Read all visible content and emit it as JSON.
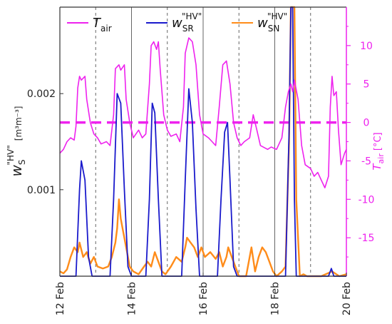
{
  "chart_data": {
    "type": "line",
    "x_ticks": [
      "12 Feb",
      "14 Feb",
      "16 Feb",
      "18 Feb",
      "20 Feb"
    ],
    "x_range_days": [
      12,
      20
    ],
    "y_left": {
      "label_main": "w",
      "label_sup": "\"HV\"",
      "label_sub": "S",
      "label_unit": "[m³m⁻³]",
      "range": [
        0.0001,
        0.0029
      ],
      "ticks": [
        {
          "value": 0.001,
          "label": "0.001"
        },
        {
          "value": 0.002,
          "label": "0.002"
        }
      ]
    },
    "y_right": {
      "label_main": "T",
      "label_sub": "air",
      "label_unit": "[°C]",
      "range": [
        -20,
        15
      ],
      "ticks": [
        {
          "value": 10,
          "label": "10"
        },
        {
          "value": 5,
          "label": "5"
        },
        {
          "value": 0,
          "label": "0"
        },
        {
          "value": -5,
          "label": "-5"
        },
        {
          "value": -10,
          "label": "-10"
        },
        {
          "value": -15,
          "label": "-15"
        }
      ],
      "reference_line": 0
    },
    "solid_vertical_lines_days": [
      14,
      16,
      18
    ],
    "dashed_vertical_lines_days": [
      13,
      15,
      17,
      19
    ],
    "legend": [
      {
        "key": "tair",
        "main": "T",
        "sub": "air",
        "sup": ""
      },
      {
        "key": "wsr",
        "main": "w",
        "sub": "SR",
        "sup": "\"HV\""
      },
      {
        "key": "wsn",
        "main": "w",
        "sub": "SN",
        "sup": "\"HV\""
      }
    ],
    "series": [
      {
        "key": "tair",
        "name": "T air",
        "axis": "right",
        "color": "#ee22ee",
        "points": [
          [
            12.0,
            -4.0
          ],
          [
            12.1,
            -3.5
          ],
          [
            12.2,
            -2.5
          ],
          [
            12.3,
            -2.0
          ],
          [
            12.4,
            -2.3
          ],
          [
            12.45,
            -0.5
          ],
          [
            12.5,
            4.5
          ],
          [
            12.55,
            6.0
          ],
          [
            12.6,
            5.5
          ],
          [
            12.7,
            6.0
          ],
          [
            12.75,
            3.0
          ],
          [
            12.85,
            0.0
          ],
          [
            12.95,
            -1.5
          ],
          [
            13.05,
            -2.0
          ],
          [
            13.15,
            -2.8
          ],
          [
            13.3,
            -2.5
          ],
          [
            13.4,
            -3.0
          ],
          [
            13.5,
            1.0
          ],
          [
            13.55,
            7.0
          ],
          [
            13.65,
            7.5
          ],
          [
            13.7,
            6.8
          ],
          [
            13.8,
            7.5
          ],
          [
            13.85,
            3.0
          ],
          [
            13.95,
            0.0
          ],
          [
            14.05,
            -2.0
          ],
          [
            14.2,
            -1.0
          ],
          [
            14.3,
            -2.0
          ],
          [
            14.4,
            -1.5
          ],
          [
            14.5,
            5.0
          ],
          [
            14.55,
            10.0
          ],
          [
            14.62,
            10.5
          ],
          [
            14.7,
            9.5
          ],
          [
            14.75,
            10.5
          ],
          [
            14.8,
            7.0
          ],
          [
            14.9,
            1.0
          ],
          [
            15.0,
            -1.0
          ],
          [
            15.1,
            -1.8
          ],
          [
            15.25,
            -1.5
          ],
          [
            15.35,
            -2.5
          ],
          [
            15.45,
            2.0
          ],
          [
            15.5,
            9.0
          ],
          [
            15.6,
            11.0
          ],
          [
            15.7,
            10.5
          ],
          [
            15.8,
            7.5
          ],
          [
            15.9,
            1.0
          ],
          [
            16.0,
            -1.5
          ],
          [
            16.15,
            -2.0
          ],
          [
            16.25,
            -2.5
          ],
          [
            16.35,
            -3.0
          ],
          [
            16.45,
            2.0
          ],
          [
            16.55,
            7.5
          ],
          [
            16.65,
            8.0
          ],
          [
            16.75,
            5.0
          ],
          [
            16.85,
            0.0
          ],
          [
            16.95,
            -2.0
          ],
          [
            17.05,
            -3.0
          ],
          [
            17.15,
            -2.5
          ],
          [
            17.3,
            -2.0
          ],
          [
            17.4,
            1.0
          ],
          [
            17.5,
            -1.0
          ],
          [
            17.6,
            -3.0
          ],
          [
            17.8,
            -3.5
          ],
          [
            17.9,
            -3.2
          ],
          [
            18.05,
            -3.5
          ],
          [
            18.2,
            -2.0
          ],
          [
            18.3,
            2.0
          ],
          [
            18.38,
            4.0
          ],
          [
            18.45,
            5.0
          ],
          [
            18.5,
            4.0
          ],
          [
            18.55,
            5.5
          ],
          [
            18.65,
            3.0
          ],
          [
            18.75,
            -3.0
          ],
          [
            18.85,
            -5.5
          ],
          [
            19.0,
            -6.0
          ],
          [
            19.1,
            -7.0
          ],
          [
            19.2,
            -6.5
          ],
          [
            19.3,
            -7.5
          ],
          [
            19.4,
            -8.5
          ],
          [
            19.5,
            -7.0
          ],
          [
            19.55,
            2.0
          ],
          [
            19.6,
            6.0
          ],
          [
            19.65,
            3.5
          ],
          [
            19.72,
            4.0
          ],
          [
            19.78,
            -1.0
          ],
          [
            19.85,
            -5.5
          ],
          [
            19.95,
            -4.0
          ],
          [
            20.0,
            -3.5
          ]
        ]
      },
      {
        "key": "wsr",
        "name": "w SR \"HV\"",
        "axis": "left",
        "color": "#1a1acc",
        "points": [
          [
            12.0,
            0.0001
          ],
          [
            12.45,
            0.0001
          ],
          [
            12.55,
            0.001
          ],
          [
            12.6,
            0.0013
          ],
          [
            12.7,
            0.0011
          ],
          [
            12.8,
            0.0003
          ],
          [
            12.9,
            0.0001
          ],
          [
            13.4,
            0.0001
          ],
          [
            13.5,
            0.0009
          ],
          [
            13.6,
            0.002
          ],
          [
            13.7,
            0.0019
          ],
          [
            13.8,
            0.001
          ],
          [
            13.9,
            0.0002
          ],
          [
            14.0,
            0.0001
          ],
          [
            14.4,
            0.0001
          ],
          [
            14.5,
            0.0009
          ],
          [
            14.58,
            0.0019
          ],
          [
            14.65,
            0.0018
          ],
          [
            14.75,
            0.0009
          ],
          [
            14.85,
            0.0001
          ],
          [
            15.4,
            0.0001
          ],
          [
            15.5,
            0.0011
          ],
          [
            15.6,
            0.00205
          ],
          [
            15.7,
            0.0017
          ],
          [
            15.8,
            0.0008
          ],
          [
            15.9,
            0.0001
          ],
          [
            16.4,
            0.0001
          ],
          [
            16.5,
            0.0009
          ],
          [
            16.6,
            0.0016
          ],
          [
            16.68,
            0.0017
          ],
          [
            16.75,
            0.0011
          ],
          [
            16.85,
            0.0002
          ],
          [
            16.95,
            0.0001
          ],
          [
            17.8,
            0.0001
          ],
          [
            18.3,
            0.0001
          ],
          [
            18.4,
            0.0016
          ],
          [
            18.45,
            0.0029
          ],
          [
            18.5,
            0.0029
          ],
          [
            18.55,
            0.0009
          ],
          [
            18.6,
            0.0001
          ],
          [
            19.5,
            0.0001
          ],
          [
            19.58,
            0.00018
          ],
          [
            19.65,
            0.0001
          ],
          [
            20.0,
            0.0001
          ]
        ]
      },
      {
        "key": "wsn",
        "name": "w SN \"HV\"",
        "axis": "left",
        "color": "#ff8c1a",
        "points": [
          [
            12.0,
            0.00015
          ],
          [
            12.1,
            0.00013
          ],
          [
            12.2,
            0.00017
          ],
          [
            12.3,
            0.0003
          ],
          [
            12.4,
            0.0004
          ],
          [
            12.5,
            0.00035
          ],
          [
            12.55,
            0.00045
          ],
          [
            12.65,
            0.0003
          ],
          [
            12.75,
            0.00035
          ],
          [
            12.85,
            0.00023
          ],
          [
            12.95,
            0.0003
          ],
          [
            13.05,
            0.0002
          ],
          [
            13.2,
            0.00018
          ],
          [
            13.35,
            0.0002
          ],
          [
            13.45,
            0.0003
          ],
          [
            13.55,
            0.00045
          ],
          [
            13.6,
            0.0006
          ],
          [
            13.65,
            0.0009
          ],
          [
            13.7,
            0.0007
          ],
          [
            13.75,
            0.0006
          ],
          [
            13.85,
            0.0004
          ],
          [
            13.95,
            0.0002
          ],
          [
            14.05,
            0.00015
          ],
          [
            14.2,
            0.00012
          ],
          [
            14.35,
            0.0002
          ],
          [
            14.45,
            0.00025
          ],
          [
            14.55,
            0.0002
          ],
          [
            14.65,
            0.00035
          ],
          [
            14.75,
            0.00025
          ],
          [
            14.85,
            0.00015
          ],
          [
            14.95,
            0.00012
          ],
          [
            15.1,
            0.0002
          ],
          [
            15.25,
            0.0003
          ],
          [
            15.4,
            0.00025
          ],
          [
            15.5,
            0.0004
          ],
          [
            15.55,
            0.0005
          ],
          [
            15.65,
            0.00045
          ],
          [
            15.75,
            0.0004
          ],
          [
            15.85,
            0.0003
          ],
          [
            15.95,
            0.0004
          ],
          [
            16.05,
            0.0003
          ],
          [
            16.2,
            0.00035
          ],
          [
            16.35,
            0.00028
          ],
          [
            16.45,
            0.00035
          ],
          [
            16.55,
            0.0002
          ],
          [
            16.65,
            0.0003
          ],
          [
            16.7,
            0.0004
          ],
          [
            16.8,
            0.0003
          ],
          [
            16.9,
            0.0002
          ],
          [
            17.0,
            0.0001
          ],
          [
            17.2,
            5e-05
          ],
          [
            17.35,
            0.0004
          ],
          [
            17.45,
            0.00015
          ],
          [
            17.55,
            0.0003
          ],
          [
            17.65,
            0.0004
          ],
          [
            17.75,
            0.00035
          ],
          [
            17.85,
            0.00025
          ],
          [
            17.95,
            0.00015
          ],
          [
            18.05,
            8e-05
          ],
          [
            18.2,
            0.00015
          ],
          [
            18.3,
            0.0002
          ],
          [
            18.4,
            0.0015
          ],
          [
            18.45,
            0.0029
          ],
          [
            18.55,
            0.0029
          ],
          [
            18.6,
            0.0009
          ],
          [
            18.7,
            0.0001
          ],
          [
            18.8,
            0.00012
          ],
          [
            18.9,
            8e-05
          ],
          [
            19.0,
            5e-05
          ],
          [
            19.3,
            6e-05
          ],
          [
            19.6,
            0.00015
          ],
          [
            19.8,
            8e-05
          ],
          [
            20.0,
            0.00012
          ]
        ]
      }
    ]
  }
}
